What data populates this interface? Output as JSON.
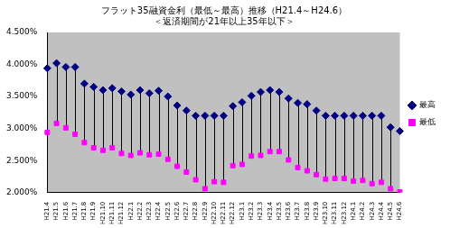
{
  "chart_data": {
    "type": "hilo",
    "title": [
      "フラット35融資金利（最低～最高）推移（H21.4～H24.6）",
      "＜返済期間が21年以上35年以下＞"
    ],
    "categories": [
      "H21.4",
      "H21.5",
      "H21.6",
      "H21.7",
      "H21.8",
      "H21.9",
      "H21.10",
      "H21.11",
      "H21.12",
      "H22.1",
      "H22.2",
      "H22.3",
      "H22.4",
      "H22.5",
      "H22.6",
      "H22.7",
      "H22.8",
      "H22.9",
      "H22.10",
      "H22.11",
      "H22.12",
      "H23.1",
      "H23.2",
      "H23.3",
      "H23.4",
      "H23.5",
      "H23.6",
      "H23.7",
      "H23.8",
      "H23.9",
      "H23.10",
      "H23.11",
      "H23.12",
      "H24.1",
      "H24.2",
      "H24.3",
      "H24.4",
      "H24.5",
      "H24.6"
    ],
    "series": [
      {
        "name": "最高",
        "color": "#000080",
        "marker": "diamond",
        "values": [
          3.94,
          4.02,
          3.96,
          3.96,
          3.7,
          3.65,
          3.6,
          3.63,
          3.58,
          3.53,
          3.6,
          3.55,
          3.59,
          3.5,
          3.36,
          3.28,
          3.2,
          3.2,
          3.2,
          3.2,
          3.35,
          3.41,
          3.51,
          3.57,
          3.6,
          3.57,
          3.47,
          3.4,
          3.38,
          3.28,
          3.2,
          3.2,
          3.2,
          3.2,
          3.2,
          3.2,
          3.2,
          3.02,
          2.96
        ]
      },
      {
        "name": "最低",
        "color": "#ff00ff",
        "marker": "square",
        "values": [
          2.94,
          3.08,
          3.01,
          2.91,
          2.78,
          2.7,
          2.66,
          2.7,
          2.61,
          2.58,
          2.62,
          2.59,
          2.6,
          2.52,
          2.41,
          2.32,
          2.2,
          2.06,
          2.17,
          2.16,
          2.42,
          2.44,
          2.57,
          2.58,
          2.64,
          2.64,
          2.51,
          2.39,
          2.34,
          2.28,
          2.21,
          2.22,
          2.22,
          2.18,
          2.19,
          2.14,
          2.16,
          2.06,
          2.01
        ]
      }
    ],
    "ylim": [
      2.0,
      4.5
    ],
    "yticks": [
      {
        "value": 2.0,
        "label": "2.000%"
      },
      {
        "value": 2.5,
        "label": "2.500%"
      },
      {
        "value": 3.0,
        "label": "3.000%"
      },
      {
        "value": 3.5,
        "label": "3.500%"
      },
      {
        "value": 4.0,
        "label": "4.000%"
      },
      {
        "value": 4.5,
        "label": "4.500%"
      }
    ],
    "grid": false,
    "legend": "right"
  }
}
